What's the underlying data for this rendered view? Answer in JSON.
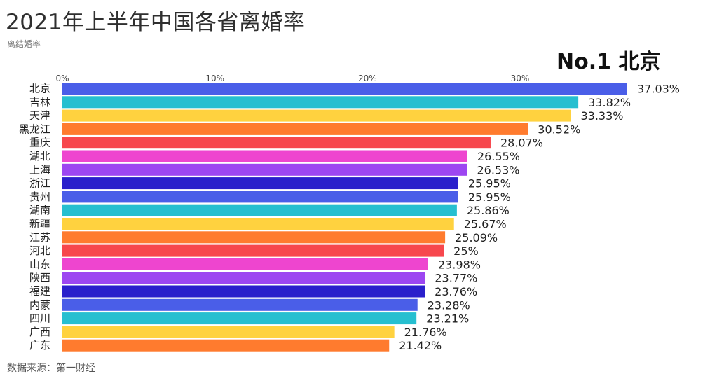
{
  "header": {
    "title": "2021年上半年中国各省离婚率",
    "subtitle": "离结婚率",
    "rank_label": "No.1 北京"
  },
  "footer": {
    "source": "数据来源：第一财经"
  },
  "chart_data": {
    "type": "bar",
    "orientation": "horizontal",
    "title": "2021年上半年中国各省离婚率",
    "subtitle": "离结婚率",
    "xlim": [
      0,
      37.03
    ],
    "x_ticks": [
      "0%",
      "10%",
      "20%",
      "30%"
    ],
    "x_tick_values": [
      0,
      10,
      20,
      30
    ],
    "axis_position": "top",
    "grid": false,
    "categories": [
      "北京",
      "吉林",
      "天津",
      "黑龙江",
      "重庆",
      "湖北",
      "上海",
      "浙江",
      "贵州",
      "湖南",
      "新疆",
      "江苏",
      "河北",
      "山东",
      "陕西",
      "福建",
      "内蒙",
      "四川",
      "广西",
      "广东"
    ],
    "values": [
      37.03,
      33.82,
      33.33,
      30.52,
      28.07,
      26.55,
      26.53,
      25.95,
      25.95,
      25.86,
      25.67,
      25.09,
      25,
      23.98,
      23.77,
      23.76,
      23.28,
      23.21,
      21.76,
      21.42
    ],
    "value_labels": [
      "37.03%",
      "33.82%",
      "33.33%",
      "30.52%",
      "28.07%",
      "26.55%",
      "26.53%",
      "25.95%",
      "25.95%",
      "25.86%",
      "25.67%",
      "25.09%",
      "25%",
      "23.98%",
      "23.77%",
      "23.76%",
      "23.28%",
      "23.21%",
      "21.76%",
      "21.42%"
    ],
    "colors": [
      "#4a5ee8",
      "#26bfd0",
      "#ffd23f",
      "#ff7b2e",
      "#f7474d",
      "#ee45cf",
      "#9d46f1",
      "#2a1fcb",
      "#4a5ee8",
      "#26bfd0",
      "#ffd23f",
      "#ff7b2e",
      "#f7474d",
      "#ee45cf",
      "#9d46f1",
      "#2a1fcb",
      "#4a5ee8",
      "#26bfd0",
      "#ffd23f",
      "#ff7b2e"
    ],
    "value_label_color": "#222222",
    "category_label_color": "#222222"
  }
}
